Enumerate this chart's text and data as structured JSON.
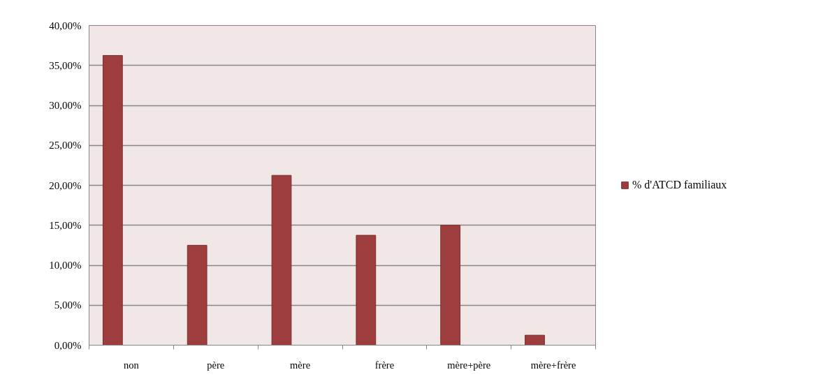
{
  "chart_data": {
    "type": "bar",
    "categories": [
      "non",
      "père",
      "mère",
      "frère",
      "mère+père",
      "mère+frère"
    ],
    "series": [
      {
        "name": "% d'ATCD familiaux",
        "color": "#9e3d3d",
        "values": [
          36.25,
          12.5,
          21.25,
          13.75,
          15,
          1.25
        ]
      }
    ],
    "ylim": [
      0,
      40
    ],
    "yticks": [
      {
        "value": 0,
        "label": "0,00%"
      },
      {
        "value": 5,
        "label": "5,00%"
      },
      {
        "value": 10,
        "label": "10,00%"
      },
      {
        "value": 15,
        "label": "15,00%"
      },
      {
        "value": 20,
        "label": "20,00%"
      },
      {
        "value": 25,
        "label": "25,00%"
      },
      {
        "value": 30,
        "label": "30,00%"
      },
      {
        "value": 35,
        "label": "35,00%"
      },
      {
        "value": 40,
        "label": "40,00%"
      }
    ],
    "grid": "y",
    "legend": "right"
  }
}
